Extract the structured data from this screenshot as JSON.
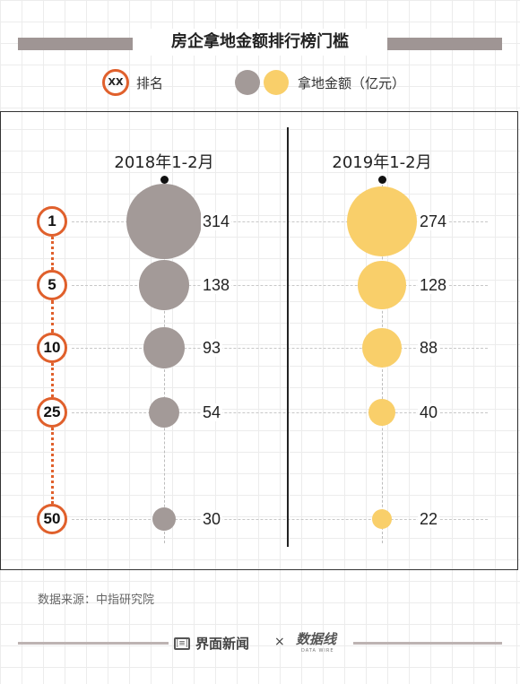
{
  "title": "房企拿地金额排行榜门槛",
  "legend": {
    "rank_symbol": "XX",
    "rank_label": "排名",
    "amount_label": "拿地金额（亿元）",
    "colors": [
      "#a39a98",
      "#f9cf6a"
    ]
  },
  "chart_data": {
    "type": "scatter",
    "ranks": [
      "1",
      "5",
      "10",
      "25",
      "50"
    ],
    "series": [
      {
        "name": "2018年1-2月",
        "color": "#a39a98",
        "values": [
          314,
          138,
          93,
          54,
          30
        ]
      },
      {
        "name": "2019年1-2月",
        "color": "#f9cf6a",
        "values": [
          274,
          128,
          88,
          40,
          22
        ]
      }
    ],
    "rank_color": "#e0602c"
  },
  "source": "数据来源：中指研究院",
  "footer": {
    "brand": "界面新闻",
    "separator": "×",
    "partner_logo_text": "数据线",
    "partner_subtext": "DATA WIRE"
  }
}
